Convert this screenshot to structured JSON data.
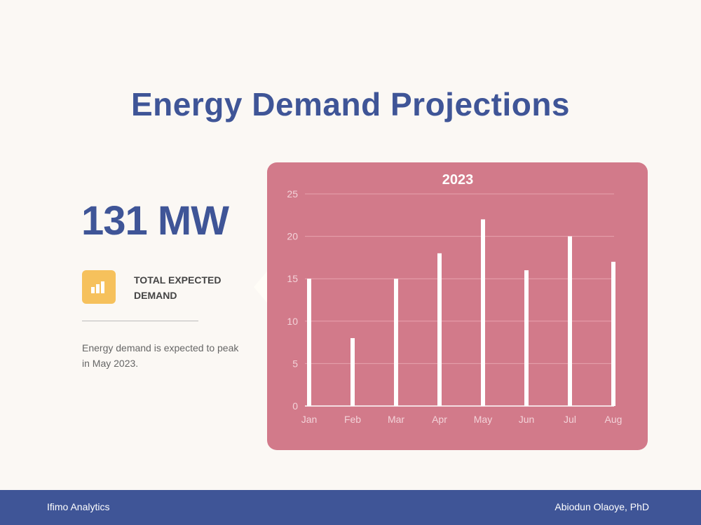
{
  "slide": {
    "title": "Energy Demand Projections",
    "big_stat": "131 MW",
    "stat_icon": "bar-chart-icon",
    "stat_label_line1": "TOTAL EXPECTED",
    "stat_label_line2": "DEMAND",
    "description": "Energy demand is expected to peak in May 2023."
  },
  "footer": {
    "left": "Ifimo Analytics",
    "right": "Abiodun Olaoye, PhD"
  },
  "colors": {
    "title": "#3f5597",
    "panel": "#d27a8a",
    "bar": "#ffffff",
    "icon_bg": "#f6c15c",
    "footer_bg": "#3f5597"
  },
  "chart_data": {
    "type": "bar",
    "title": "2023",
    "categories": [
      "Jan",
      "Feb",
      "Mar",
      "Apr",
      "May",
      "Jun",
      "Jul",
      "Aug"
    ],
    "values": [
      15,
      8,
      15,
      18,
      22,
      16,
      20,
      17
    ],
    "ylim": [
      0,
      25
    ],
    "yticks": [
      0,
      5,
      10,
      15,
      20,
      25
    ],
    "xlabel": "",
    "ylabel": "",
    "grid": true
  }
}
